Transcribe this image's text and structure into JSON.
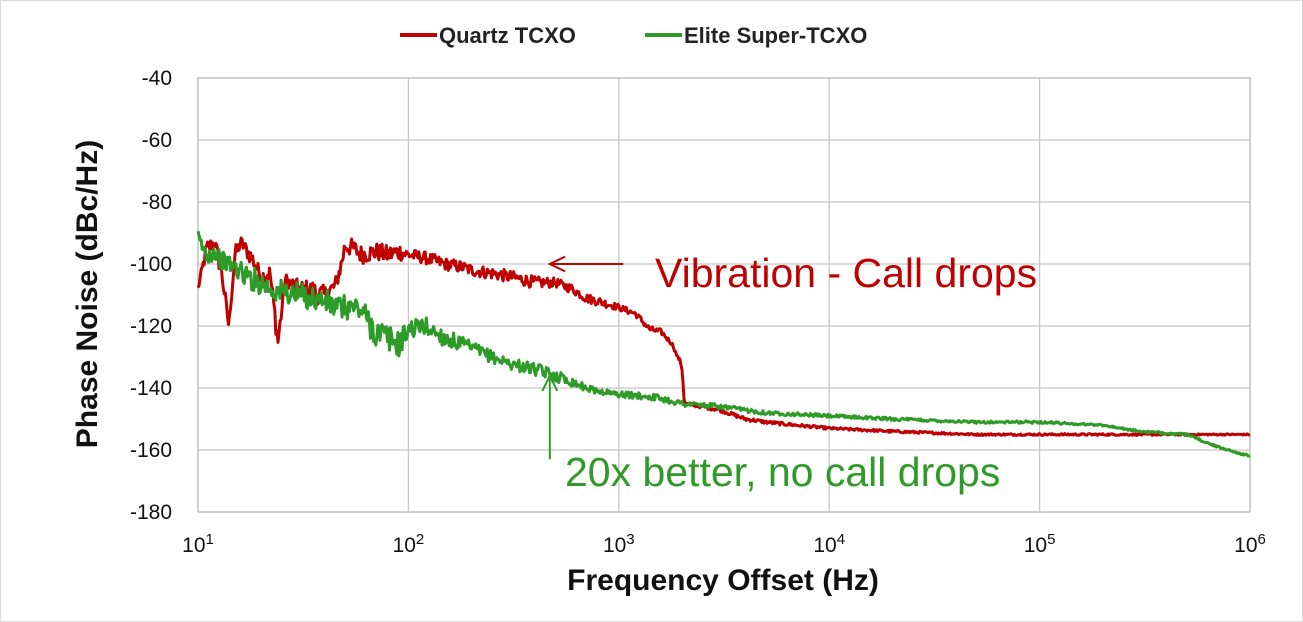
{
  "chart_data": {
    "type": "line",
    "title": "",
    "xlabel": "Frequency Offset (Hz)",
    "ylabel": "Phase Noise (dBc/Hz)",
    "xscale": "log",
    "xlim": [
      10,
      1000000
    ],
    "ylim": [
      -180,
      -40
    ],
    "xticks": [
      {
        "value": 10,
        "base": "10",
        "exp": "1"
      },
      {
        "value": 100,
        "base": "10",
        "exp": "2"
      },
      {
        "value": 1000,
        "base": "10",
        "exp": "3"
      },
      {
        "value": 10000,
        "base": "10",
        "exp": "4"
      },
      {
        "value": 100000,
        "base": "10",
        "exp": "5"
      },
      {
        "value": 1000000,
        "base": "10",
        "exp": "6"
      }
    ],
    "yticks": [
      -40,
      -60,
      -80,
      -100,
      -120,
      -140,
      -160,
      -180
    ],
    "ytick_labels": [
      "-40",
      "-60",
      "-80",
      "-100",
      "-120",
      "-140",
      "-160",
      "-180"
    ],
    "grid": true,
    "legend_position": "top-center",
    "series": [
      {
        "name": "Quartz TCXO",
        "color": "#c00000",
        "points": [
          [
            10,
            -108
          ],
          [
            11,
            -95
          ],
          [
            12,
            -93
          ],
          [
            13,
            -103
          ],
          [
            14,
            -120
          ],
          [
            15,
            -97
          ],
          [
            16,
            -93
          ],
          [
            18,
            -98
          ],
          [
            20,
            -104
          ],
          [
            22,
            -103
          ],
          [
            24,
            -125
          ],
          [
            26,
            -105
          ],
          [
            30,
            -108
          ],
          [
            35,
            -109
          ],
          [
            40,
            -110
          ],
          [
            45,
            -107
          ],
          [
            48,
            -100
          ],
          [
            50,
            -94
          ],
          [
            55,
            -95
          ],
          [
            60,
            -97
          ],
          [
            70,
            -96
          ],
          [
            80,
            -97
          ],
          [
            90,
            -96
          ],
          [
            100,
            -97
          ],
          [
            120,
            -98
          ],
          [
            150,
            -100
          ],
          [
            180,
            -101
          ],
          [
            200,
            -102
          ],
          [
            250,
            -103
          ],
          [
            300,
            -104
          ],
          [
            350,
            -105
          ],
          [
            400,
            -106
          ],
          [
            500,
            -106
          ],
          [
            600,
            -108
          ],
          [
            700,
            -111
          ],
          [
            800,
            -112
          ],
          [
            1000,
            -114
          ],
          [
            1200,
            -116
          ],
          [
            1400,
            -121
          ],
          [
            1600,
            -122
          ],
          [
            1800,
            -126
          ],
          [
            1900,
            -130
          ],
          [
            1950,
            -131
          ],
          [
            2000,
            -134
          ],
          [
            2050,
            -145
          ],
          [
            2500,
            -146
          ],
          [
            3000,
            -147
          ],
          [
            4000,
            -150
          ],
          [
            5000,
            -151
          ],
          [
            7000,
            -152
          ],
          [
            10000,
            -153
          ],
          [
            20000,
            -154
          ],
          [
            50000,
            -155
          ],
          [
            100000,
            -155
          ],
          [
            300000,
            -155
          ],
          [
            1000000,
            -155
          ]
        ],
        "jitter": [
          1,
          3,
          2,
          4,
          1,
          3,
          2,
          3,
          2,
          3,
          4,
          2,
          3,
          4,
          3,
          3,
          3,
          3,
          3,
          3,
          3,
          3,
          3,
          2,
          2,
          2,
          2,
          2,
          2,
          2,
          2,
          2,
          1.5,
          1.5,
          1.5,
          1.5,
          1,
          1,
          1,
          1,
          0.5,
          0.5,
          0.5,
          0.5,
          0.5,
          0.6,
          0.6,
          0.6,
          0.5,
          0.5,
          0.4,
          0.4,
          0.3,
          0.3,
          0.3,
          0.2
        ]
      },
      {
        "name": "Elite Super-TCXO",
        "color": "#2e9a27",
        "points": [
          [
            10,
            -92
          ],
          [
            11,
            -97
          ],
          [
            12,
            -96
          ],
          [
            13,
            -99
          ],
          [
            15,
            -101
          ],
          [
            17,
            -104
          ],
          [
            20,
            -106
          ],
          [
            22,
            -108
          ],
          [
            25,
            -109
          ],
          [
            30,
            -110
          ],
          [
            35,
            -111
          ],
          [
            40,
            -112
          ],
          [
            45,
            -114
          ],
          [
            50,
            -114
          ],
          [
            55,
            -114
          ],
          [
            60,
            -115
          ],
          [
            70,
            -122
          ],
          [
            80,
            -124
          ],
          [
            90,
            -126
          ],
          [
            100,
            -121
          ],
          [
            120,
            -120
          ],
          [
            150,
            -124
          ],
          [
            200,
            -127
          ],
          [
            250,
            -130
          ],
          [
            300,
            -132
          ],
          [
            400,
            -134
          ],
          [
            500,
            -136
          ],
          [
            600,
            -138
          ],
          [
            700,
            -140
          ],
          [
            800,
            -141
          ],
          [
            1000,
            -142
          ],
          [
            1500,
            -143
          ],
          [
            2000,
            -145
          ],
          [
            3000,
            -146
          ],
          [
            5000,
            -148
          ],
          [
            10000,
            -149
          ],
          [
            20000,
            -150
          ],
          [
            50000,
            -151
          ],
          [
            100000,
            -151
          ],
          [
            200000,
            -152
          ],
          [
            300000,
            -154
          ],
          [
            500000,
            -155
          ],
          [
            700000,
            -159
          ],
          [
            1000000,
            -162
          ]
        ],
        "jitter": [
          3,
          3,
          3,
          3,
          3,
          4,
          4,
          4,
          4,
          4,
          4,
          4,
          4,
          4,
          4,
          4,
          5,
          5,
          4,
          3,
          3,
          3,
          2,
          2,
          2,
          2,
          2,
          1.5,
          1,
          1,
          1,
          1,
          1,
          0.8,
          0.6,
          0.5,
          0.5,
          0.4,
          0.4,
          0.3,
          0.3,
          0.3,
          0.3,
          0.3
        ]
      }
    ],
    "annotations": [
      {
        "text": "Vibration - Call drops",
        "color": "#c00000",
        "arrow_from": [
          1050,
          -100
        ],
        "arrow_to": [
          470,
          -100
        ]
      },
      {
        "text": "20x better, no call drops",
        "color": "#2e9a27",
        "arrow_from": [
          470,
          -163
        ],
        "arrow_to": [
          470,
          -136
        ]
      }
    ]
  }
}
